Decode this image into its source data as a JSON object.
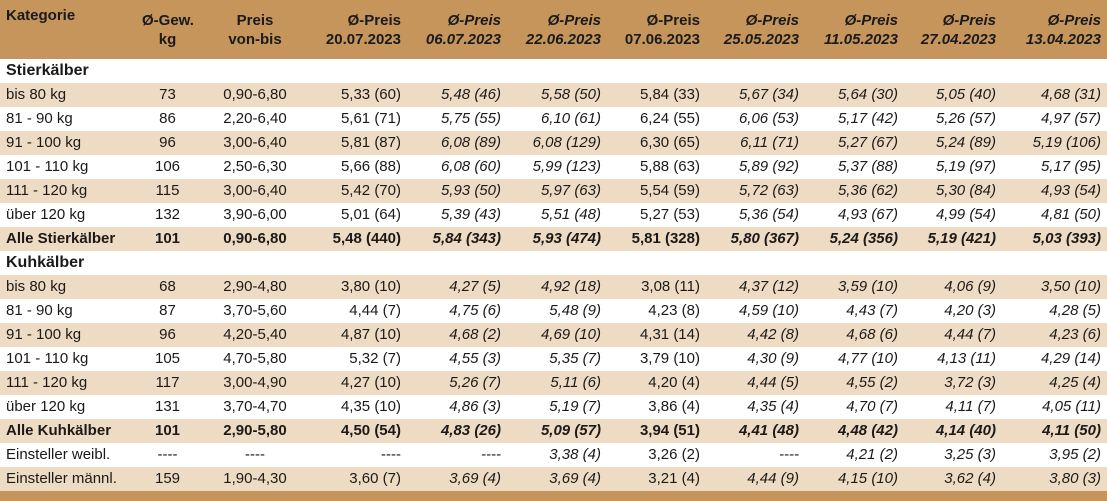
{
  "columns": [
    {
      "label": "Kategorie",
      "italic": false
    },
    {
      "label": "Ø-Gew.\nkg",
      "italic": false
    },
    {
      "label": "Preis\nvon-bis",
      "italic": false
    },
    {
      "label": "Ø-Preis\n20.07.2023",
      "italic": false
    },
    {
      "label": "Ø-Preis\n06.07.2023",
      "italic": true
    },
    {
      "label": "Ø-Preis\n22.06.2023",
      "italic": true
    },
    {
      "label": "Ø-Preis\n07.06.2023",
      "italic": false
    },
    {
      "label": "Ø-Preis\n25.05.2023",
      "italic": true
    },
    {
      "label": "Ø-Preis\n11.05.2023",
      "italic": true
    },
    {
      "label": "Ø-Preis\n27.04.2023",
      "italic": true
    },
    {
      "label": "Ø-Preis\n13.04.2023",
      "italic": true
    }
  ],
  "rows": [
    {
      "type": "section",
      "cells": [
        "Stierkälber"
      ]
    },
    {
      "type": "tan",
      "cells": [
        "bis 80 kg",
        "73",
        "0,90-6,80",
        "5,33 (60)",
        "5,48 (46)",
        "5,58 (50)",
        "5,84 (33)",
        "5,67 (34)",
        "5,64 (30)",
        "5,05 (40)",
        "4,68 (31)"
      ]
    },
    {
      "type": "light",
      "cells": [
        "81 - 90 kg",
        "86",
        "2,20-6,40",
        "5,61 (71)",
        "5,75 (55)",
        "6,10 (61)",
        "6,24 (55)",
        "6,06 (53)",
        "5,17 (42)",
        "5,26 (57)",
        "4,97 (57)"
      ]
    },
    {
      "type": "tan",
      "cells": [
        "91 - 100 kg",
        "96",
        "3,00-6,40",
        "5,81 (87)",
        "6,08 (89)",
        "6,08 (129)",
        "6,30 (65)",
        "6,11 (71)",
        "5,27 (67)",
        "5,24 (89)",
        "5,19 (106)"
      ]
    },
    {
      "type": "light",
      "cells": [
        "101 - 110 kg",
        "106",
        "2,50-6,30",
        "5,66 (88)",
        "6,08 (60)",
        "5,99 (123)",
        "5,88 (63)",
        "5,89 (92)",
        "5,37 (88)",
        "5,19 (97)",
        "5,17 (95)"
      ]
    },
    {
      "type": "tan",
      "cells": [
        "111 - 120 kg",
        "115",
        "3,00-6,40",
        "5,42 (70)",
        "5,93 (50)",
        "5,97 (63)",
        "5,54 (59)",
        "5,72 (63)",
        "5,36 (62)",
        "5,30 (84)",
        "4,93 (54)"
      ]
    },
    {
      "type": "light",
      "cells": [
        "über 120 kg",
        "132",
        "3,90-6,00",
        "5,01 (64)",
        "5,39 (43)",
        "5,51 (48)",
        "5,27 (53)",
        "5,36 (54)",
        "4,93 (67)",
        "4,99 (54)",
        "4,81 (50)"
      ]
    },
    {
      "type": "total",
      "cells": [
        "Alle Stierkälber",
        "101",
        "0,90-6,80",
        "5,48 (440)",
        "5,84 (343)",
        "5,93 (474)",
        "5,81 (328)",
        "5,80 (367)",
        "5,24 (356)",
        "5,19 (421)",
        "5,03 (393)"
      ]
    },
    {
      "type": "section",
      "cells": [
        "Kuhkälber"
      ]
    },
    {
      "type": "tan",
      "cells": [
        "bis 80 kg",
        "68",
        "2,90-4,80",
        "3,80 (10)",
        "4,27 (5)",
        "4,92 (18)",
        "3,08 (11)",
        "4,37 (12)",
        "3,59 (10)",
        "4,06 (9)",
        "3,50 (10)"
      ]
    },
    {
      "type": "light",
      "cells": [
        "81 - 90 kg",
        "87",
        "3,70-5,60",
        "4,44 (7)",
        "4,75 (6)",
        "5,48 (9)",
        "4,23 (8)",
        "4,59 (10)",
        "4,43 (7)",
        "4,20 (3)",
        "4,28 (5)"
      ]
    },
    {
      "type": "tan",
      "cells": [
        "91 - 100 kg",
        "96",
        "4,20-5,40",
        "4,87 (10)",
        "4,68 (2)",
        "4,69 (10)",
        "4,31 (14)",
        "4,42 (8)",
        "4,68 (6)",
        "4,44 (7)",
        "4,23 (6)"
      ]
    },
    {
      "type": "light",
      "cells": [
        "101 - 110 kg",
        "105",
        "4,70-5,80",
        "5,32 (7)",
        "4,55 (3)",
        "5,35 (7)",
        "3,79 (10)",
        "4,30 (9)",
        "4,77 (10)",
        "4,13 (11)",
        "4,29 (14)"
      ]
    },
    {
      "type": "tan",
      "cells": [
        "111 - 120 kg",
        "117",
        "3,00-4,90",
        "4,27 (10)",
        "5,26 (7)",
        "5,11 (6)",
        "4,20 (4)",
        "4,44 (5)",
        "4,55 (2)",
        "3,72 (3)",
        "4,25 (4)"
      ]
    },
    {
      "type": "light",
      "cells": [
        "über 120 kg",
        "131",
        "3,70-4,70",
        "4,35 (10)",
        "4,86 (3)",
        "5,19 (7)",
        "3,86 (4)",
        "4,35 (4)",
        "4,70 (7)",
        "4,11 (7)",
        "4,05 (11)"
      ]
    },
    {
      "type": "total",
      "cells": [
        "Alle Kuhkälber",
        "101",
        "2,90-5,80",
        "4,50 (54)",
        "4,83 (26)",
        "5,09 (57)",
        "3,94 (51)",
        "4,41 (48)",
        "4,48 (42)",
        "4,14 (40)",
        "4,11 (50)"
      ]
    },
    {
      "type": "light",
      "cells": [
        "Einsteller weibl.",
        "----",
        "----",
        "----",
        "----",
        "3,38 (4)",
        "3,26 (2)",
        "----",
        "4,21 (2)",
        "3,25 (3)",
        "3,95 (2)"
      ]
    },
    {
      "type": "tan",
      "cells": [
        "Einsteller männl.",
        "159",
        "1,90-4,30",
        "3,60 (7)",
        "3,69 (4)",
        "3,69 (4)",
        "3,21 (4)",
        "4,44 (9)",
        "4,15 (10)",
        "3,62 (4)",
        "3,80 (3)"
      ]
    }
  ],
  "colors": {
    "header_bg": "#c5955c",
    "stripe_bg": "#eddcc3",
    "light_bg": "#ffffff"
  }
}
